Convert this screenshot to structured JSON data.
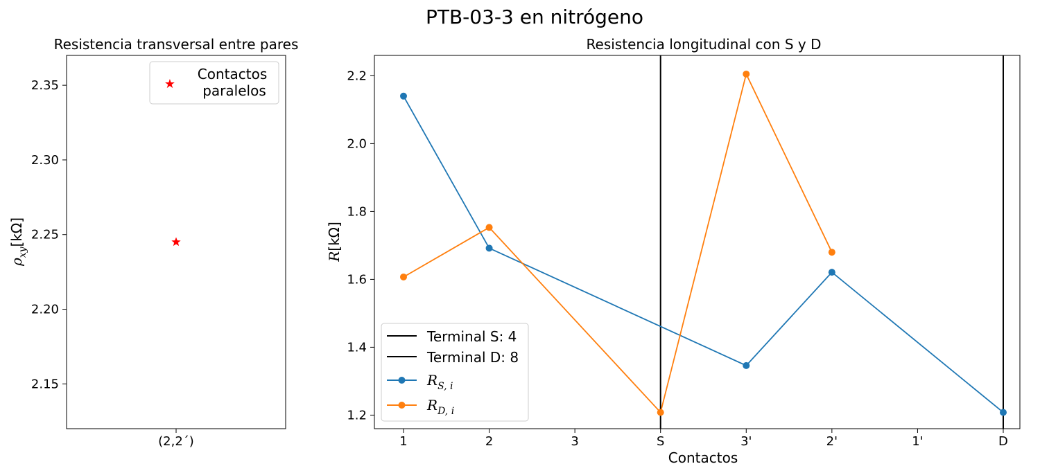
{
  "figure": {
    "suptitle": "PTB-03-3 en nitrógeno"
  },
  "chart_data": [
    {
      "type": "scatter",
      "title": "Resistencia transversal entre pares",
      "ylabel": "ρ_xy [kΩ]",
      "ylabel_parts": {
        "symbol": "ρ",
        "sub": "xy",
        "unit": "[kΩ]"
      },
      "categories": [
        "(2,2´)"
      ],
      "ylim": [
        2.12,
        2.37
      ],
      "yticks": [
        "2.15",
        "2.20",
        "2.25",
        "2.30",
        "2.35"
      ],
      "ytick_values": [
        2.15,
        2.2,
        2.25,
        2.3,
        2.35
      ],
      "series": [
        {
          "name": "Contactos paralelos",
          "name_lines": [
            "Contactos",
            "paralelos"
          ],
          "color": "#ff0000",
          "marker": "star",
          "values": [
            2.245
          ]
        }
      ],
      "legend": "top-right",
      "grid": false
    },
    {
      "type": "line",
      "title": "Resistencia longitudinal con S y D",
      "xlabel": "Contactos",
      "ylabel": "R [kΩ]",
      "ylabel_parts": {
        "symbol": "R",
        "unit": "[kΩ]"
      },
      "categories": [
        "1",
        "2",
        "3",
        "S",
        "3'",
        "2'",
        "1'",
        "D"
      ],
      "ylim": [
        1.16,
        2.26
      ],
      "yticks": [
        "1.2",
        "1.4",
        "1.6",
        "1.8",
        "2.0",
        "2.2"
      ],
      "ytick_values": [
        1.2,
        1.4,
        1.6,
        1.8,
        2.0,
        2.2
      ],
      "vlines": [
        {
          "name": "Terminal S: 4",
          "at": "S",
          "color": "#000000"
        },
        {
          "name": "Terminal D: 8",
          "at": "D",
          "color": "#000000"
        }
      ],
      "series": [
        {
          "name": "R_S,i",
          "symbol": "R",
          "sub": "S, i",
          "color": "#1f77b4",
          "points": [
            [
              "1",
              2.14
            ],
            [
              "2",
              1.692
            ],
            [
              "3'",
              1.346
            ],
            [
              "2'",
              1.621
            ],
            [
              "D",
              1.208
            ]
          ]
        },
        {
          "name": "R_D,i",
          "symbol": "R",
          "sub": "D, i",
          "color": "#ff7f0e",
          "points": [
            [
              "1",
              1.607
            ],
            [
              "2",
              1.753
            ],
            [
              "S",
              1.208
            ],
            [
              "3'",
              2.205
            ],
            [
              "2'",
              1.68
            ]
          ]
        }
      ],
      "legend": "bottom-left",
      "grid": false
    }
  ]
}
